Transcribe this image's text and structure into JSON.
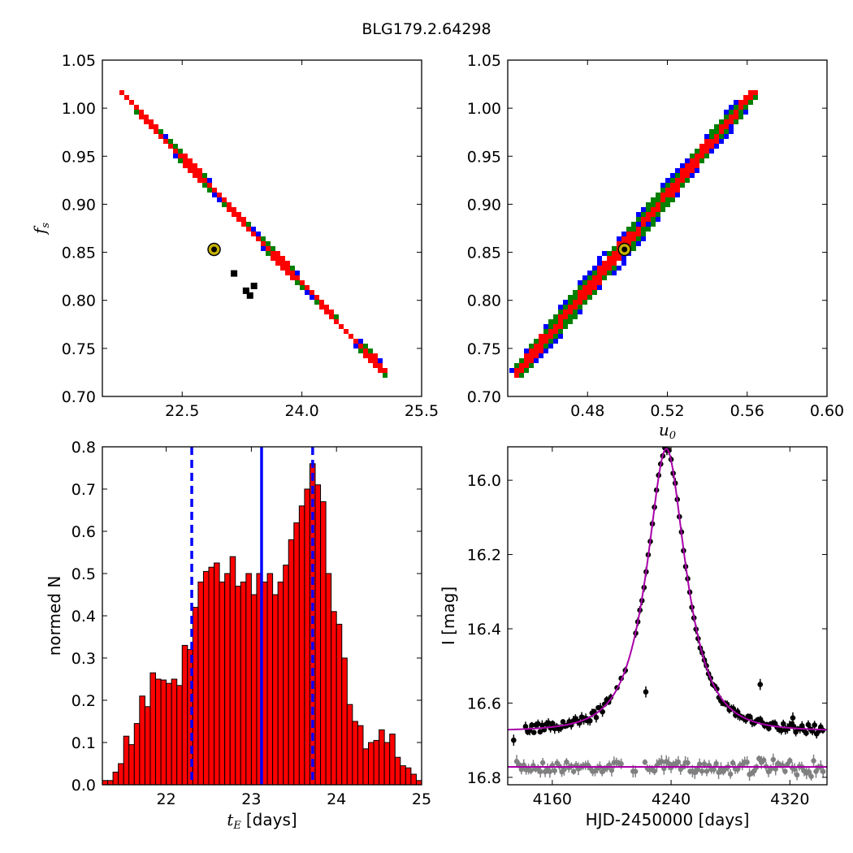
{
  "figure": {
    "title": "BLG179.2.64298"
  },
  "chart_data": [
    {
      "id": "tE_vs_fs",
      "type": "heatmap",
      "xlabel": "",
      "ylabel": "f_s",
      "ylabel_symbol": "f",
      "ylabel_sub": "s",
      "xlim": [
        21.5,
        25.5
      ],
      "ylim": [
        0.7,
        1.05
      ],
      "xticks": [
        22.5,
        24.0,
        25.5
      ],
      "xtick_labels": [
        "22.5",
        "24.0",
        "25.5"
      ],
      "yticks": [
        0.7,
        0.75,
        0.8,
        0.85,
        0.9,
        0.95,
        1.0,
        1.05
      ],
      "ytick_labels": [
        "0.70",
        "0.75",
        "0.80",
        "0.85",
        "0.90",
        "0.95",
        "1.00",
        "1.05"
      ],
      "band": {
        "start": [
          21.75,
          1.015
        ],
        "end": [
          25.05,
          0.725
        ]
      },
      "band_levels": [
        {
          "name": "3-sigma",
          "color": "#0000ff",
          "half_width": 0.03
        },
        {
          "name": "2-sigma",
          "color": "#008000",
          "half_width": 0.022
        },
        {
          "name": "1-sigma",
          "color": "#ff0000",
          "half_width": 0.011
        }
      ],
      "black_cells": [
        [
          23.4,
          0.815
        ],
        [
          23.3,
          0.81
        ],
        [
          23.15,
          0.828
        ],
        [
          23.35,
          0.805
        ]
      ],
      "best_fit": {
        "x": 22.9,
        "y": 0.853,
        "color": "#c8b400"
      }
    },
    {
      "id": "u0_vs_fs",
      "type": "heatmap",
      "xlabel": "u_0",
      "xlabel_symbol": "u",
      "xlabel_sub": "0",
      "ylabel": "",
      "xlim": [
        0.44,
        0.6
      ],
      "ylim": [
        0.7,
        1.05
      ],
      "xticks": [
        0.48,
        0.52,
        0.56,
        0.6
      ],
      "xtick_labels": [
        "0.48",
        "0.52",
        "0.56",
        "0.60"
      ],
      "yticks": [
        0.7,
        0.75,
        0.8,
        0.85,
        0.9,
        0.95,
        1.0,
        1.05
      ],
      "ytick_labels": [
        "0.70",
        "0.75",
        "0.80",
        "0.85",
        "0.90",
        "0.95",
        "1.00",
        "1.05"
      ],
      "band": {
        "start": [
          0.445,
          0.725
        ],
        "end": [
          0.5625,
          1.015
        ]
      },
      "band_levels": [
        {
          "name": "3-sigma",
          "color": "#0000ff",
          "half_width": 0.004
        },
        {
          "name": "2-sigma",
          "color": "#008000",
          "half_width": 0.003
        },
        {
          "name": "1-sigma",
          "color": "#ff0000",
          "half_width": 0.0012
        }
      ],
      "best_fit": {
        "x": 0.4985,
        "y": 0.853,
        "color": "#c8b400"
      }
    },
    {
      "id": "tE_histogram",
      "type": "bar",
      "xlabel": "[days]",
      "xlabel_symbol": "t",
      "xlabel_sub": "E",
      "ylabel": "normed N",
      "xlim": [
        21.25,
        25.0
      ],
      "ylim": [
        0.0,
        0.8
      ],
      "xticks": [
        22,
        23,
        24,
        25
      ],
      "xtick_labels": [
        "22",
        "23",
        "24",
        "25"
      ],
      "yticks": [
        0.0,
        0.1,
        0.2,
        0.3,
        0.4,
        0.5,
        0.6,
        0.7,
        0.8
      ],
      "ytick_labels": [
        "0.0",
        "0.1",
        "0.2",
        "0.3",
        "0.4",
        "0.5",
        "0.6",
        "0.7",
        "0.8"
      ],
      "bin_start": 21.25,
      "bin_width": 0.0625,
      "values": [
        0.01,
        0.01,
        0.03,
        0.05,
        0.115,
        0.095,
        0.145,
        0.21,
        0.185,
        0.265,
        0.25,
        0.248,
        0.24,
        0.25,
        0.235,
        0.33,
        0.32,
        0.42,
        0.48,
        0.505,
        0.515,
        0.525,
        0.48,
        0.5,
        0.54,
        0.47,
        0.48,
        0.5,
        0.45,
        0.5,
        0.48,
        0.5,
        0.45,
        0.48,
        0.52,
        0.58,
        0.62,
        0.66,
        0.7,
        0.76,
        0.71,
        0.67,
        0.5,
        0.41,
        0.38,
        0.3,
        0.19,
        0.15,
        0.14,
        0.085,
        0.1,
        0.105,
        0.13,
        0.1,
        0.12,
        0.065,
        0.045,
        0.04,
        0.025,
        0.01,
        0.005,
        0.01
      ],
      "bar_color": "#ff0000",
      "median": 23.12,
      "confidence_bounds": [
        22.3,
        23.72
      ],
      "line_color": "#0000ff"
    },
    {
      "id": "light_curve",
      "type": "scatter",
      "xlabel": "HJD-2450000 [days]",
      "ylabel": "I [mag]",
      "xlim": [
        4130,
        4345
      ],
      "ylim": [
        16.82,
        15.91
      ],
      "xticks": [
        4160,
        4240,
        4320
      ],
      "xtick_labels": [
        "4160",
        "4240",
        "4320"
      ],
      "yticks": [
        16.0,
        16.2,
        16.4,
        16.6,
        16.8
      ],
      "ytick_labels": [
        "16.0",
        "16.2",
        "16.4",
        "16.6",
        "16.8"
      ],
      "model": {
        "t0": 4236.8,
        "tE": 23.1,
        "u0": 0.4985,
        "fs": 0.853,
        "base_mag": 16.675,
        "color": "#aa00aa"
      },
      "residual_baseline": 16.772,
      "residual_color": "#808080",
      "data_color": "#000000",
      "extra_points": [
        [
          4134,
          16.7
        ],
        [
          4223,
          16.57
        ],
        [
          4285,
          16.63
        ],
        [
          4300,
          16.55
        ],
        [
          4322,
          16.64
        ]
      ]
    }
  ]
}
